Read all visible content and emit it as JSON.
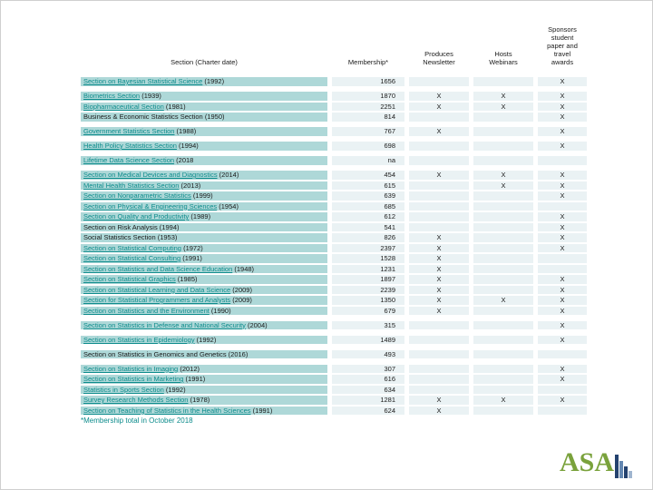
{
  "header": {
    "col_section": "Section (Charter date)",
    "col_membership": "Membership*",
    "col_newsletter": "Produces Newsletter",
    "col_webinars": "Hosts Webinars",
    "col_sponsors": "Sponsors student paper and travel awards"
  },
  "rows": [
    {
      "name": "Section on Bayesian Statistical Science",
      "date": "(1992)",
      "link": true,
      "membership": "1656",
      "newsletter": "",
      "webinars": "",
      "sponsors": "X",
      "gap": true
    },
    {
      "name": "Biometrics Section",
      "date": "(1939)",
      "link": true,
      "membership": "1870",
      "newsletter": "X",
      "webinars": "X",
      "sponsors": "X",
      "gap": false
    },
    {
      "name": "Biopharmaceutical Section",
      "date": "(1981)",
      "link": true,
      "membership": "2251",
      "newsletter": "X",
      "webinars": "X",
      "sponsors": "X",
      "gap": false
    },
    {
      "name": "Business & Economic Statistics Section",
      "date": "(1950)",
      "link": false,
      "membership": "814",
      "newsletter": "",
      "webinars": "",
      "sponsors": "X",
      "gap": true
    },
    {
      "name": "Government Statistics Section",
      "date": "(1988)",
      "link": true,
      "membership": "767",
      "newsletter": "X",
      "webinars": "",
      "sponsors": "X",
      "gap": true
    },
    {
      "name": "Health Policy Statistics Section",
      "date": "(1994)",
      "link": true,
      "membership": "698",
      "newsletter": "",
      "webinars": "",
      "sponsors": "X",
      "gap": true
    },
    {
      "name": "Lifetime Data Science Section",
      "date": "(2018",
      "link": true,
      "membership": "na",
      "newsletter": "",
      "webinars": "",
      "sponsors": "",
      "gap": true
    },
    {
      "name": "Section on Medical Devices and Diagnostics",
      "date": "(2014)",
      "link": true,
      "membership": "454",
      "newsletter": "X",
      "webinars": "X",
      "sponsors": "X",
      "gap": false
    },
    {
      "name": "Mental Health Statistics Section",
      "date": "(2013)",
      "link": true,
      "membership": "615",
      "newsletter": "",
      "webinars": "X",
      "sponsors": "X",
      "gap": false
    },
    {
      "name": "Section on Nonparametric Statistics",
      "date": "(1999)",
      "link": true,
      "membership": "639",
      "newsletter": "",
      "webinars": "",
      "sponsors": "X",
      "gap": false
    },
    {
      "name": "Section on Physical & Engineering Sciences",
      "date": "(1954)",
      "link": true,
      "membership": "685",
      "newsletter": "",
      "webinars": "",
      "sponsors": "",
      "gap": false
    },
    {
      "name": "Section on Quality and Productivity",
      "date": "(1989)",
      "link": true,
      "membership": "612",
      "newsletter": "",
      "webinars": "",
      "sponsors": "X",
      "gap": false
    },
    {
      "name": "Section on Risk Analysis",
      "date": "(1994)",
      "link": false,
      "membership": "541",
      "newsletter": "",
      "webinars": "",
      "sponsors": "X",
      "gap": false
    },
    {
      "name": "Social Statistics Section",
      "date": "(1953)",
      "link": false,
      "membership": "826",
      "newsletter": "X",
      "webinars": "",
      "sponsors": "X",
      "gap": false
    },
    {
      "name": "Section on Statistical Computing",
      "date": "(1972)",
      "link": true,
      "membership": "2397",
      "newsletter": "X",
      "webinars": "",
      "sponsors": "X",
      "gap": false
    },
    {
      "name": "Section on Statistical Consulting",
      "date": "(1991)",
      "link": true,
      "membership": "1528",
      "newsletter": "X",
      "webinars": "",
      "sponsors": "",
      "gap": false
    },
    {
      "name": "Section on Statistics and Data Science Education",
      "date": "(1948)",
      "link": true,
      "membership": "1231",
      "newsletter": "X",
      "webinars": "",
      "sponsors": "",
      "gap": false
    },
    {
      "name": "Section on Statistical Graphics",
      "date": "(1985)",
      "link": true,
      "membership": "1897",
      "newsletter": "X",
      "webinars": "",
      "sponsors": "X",
      "gap": false
    },
    {
      "name": "Section on Statistical Learning and Data Science",
      "date": "(2009)",
      "link": true,
      "membership": "2239",
      "newsletter": "X",
      "webinars": "",
      "sponsors": "X",
      "gap": false
    },
    {
      "name": "Section for Statistical Programmers and Analysts",
      "date": "(2009)",
      "link": true,
      "membership": "1350",
      "newsletter": "X",
      "webinars": "X",
      "sponsors": "X",
      "gap": false
    },
    {
      "name": "Section on Statistics and the Environment",
      "date": "(1990)",
      "link": true,
      "membership": "679",
      "newsletter": "X",
      "webinars": "",
      "sponsors": "X",
      "gap": true
    },
    {
      "name": "Section on Statistics in Defense and National Security",
      "date": "(2004)",
      "link": true,
      "membership": "315",
      "newsletter": "",
      "webinars": "",
      "sponsors": "X",
      "gap": true
    },
    {
      "name": "Section on Statistics in Epidemiology",
      "date": "(1992)",
      "link": true,
      "membership": "1489",
      "newsletter": "",
      "webinars": "",
      "sponsors": "X",
      "gap": true
    },
    {
      "name": "Section on Statistics in Genomics and Genetics",
      "date": "(2016)",
      "link": false,
      "membership": "493",
      "newsletter": "",
      "webinars": "",
      "sponsors": "",
      "gap": true
    },
    {
      "name": "Section on Statistics in Imaging",
      "date": "(2012)",
      "link": true,
      "membership": "307",
      "newsletter": "",
      "webinars": "",
      "sponsors": "X",
      "gap": false
    },
    {
      "name": "Section on Statistics in Marketing",
      "date": "(1991)",
      "link": true,
      "membership": "616",
      "newsletter": "",
      "webinars": "",
      "sponsors": "X",
      "gap": false
    },
    {
      "name": "Statistics in Sports Section",
      "date": "(1992)",
      "link": true,
      "membership": "634",
      "newsletter": "",
      "webinars": "",
      "sponsors": "",
      "gap": false
    },
    {
      "name": "Survey Research Methods Section",
      "date": "(1978)",
      "link": true,
      "membership": "1281",
      "newsletter": "X",
      "webinars": "X",
      "sponsors": "X",
      "gap": false
    },
    {
      "name": "Section on Teaching of Statistics in the Health Sciences",
      "date": "(1991)",
      "link": true,
      "membership": "624",
      "newsletter": "X",
      "webinars": "",
      "sponsors": "",
      "gap": false
    }
  ],
  "footnote": "*Membership total in October 2018",
  "logo": {
    "text": "ASA"
  },
  "colors": {
    "row_teal": "#aed8d8",
    "cell_light": "#eaf2f4",
    "link_teal": "#0d8c8c",
    "logo_green": "#7aa23c",
    "logo_navy": "#24426f",
    "logo_mid": "#6488b2",
    "logo_light": "#9fb5cf"
  }
}
